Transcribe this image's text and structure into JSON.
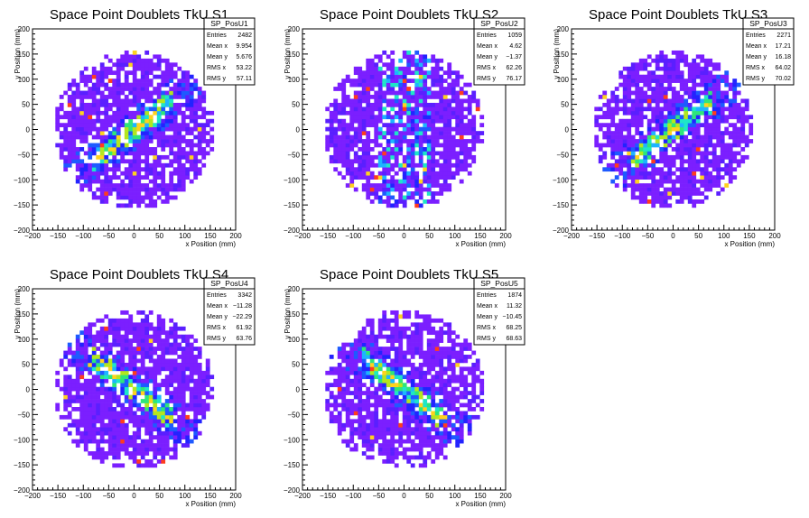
{
  "chart_data": [
    {
      "type": "heatmap",
      "title": "Space Point Doublets TkU S1",
      "xlabel": "x Position (mm)",
      "ylabel": "y Position (mm)",
      "xlim": [
        -200,
        200
      ],
      "ylim": [
        -200,
        200
      ],
      "xticks": [
        "−200",
        "−150",
        "−100",
        "−50",
        "0",
        "50",
        "100",
        "150",
        "200"
      ],
      "yticks": [
        "−200",
        "−150",
        "−100",
        "−50",
        "0",
        "50",
        "100",
        "150",
        "200"
      ],
      "stats": {
        "name": "SP_PosU1",
        "rows": [
          [
            "Entries",
            "2482"
          ],
          [
            "Mean x",
            "9.954"
          ],
          [
            "Mean y",
            "5.676"
          ],
          [
            "RMS x",
            "53.22"
          ],
          [
            "RMS y",
            "57.11"
          ]
        ]
      },
      "band": {
        "dir": 1
      }
    },
    {
      "type": "heatmap",
      "title": "Space Point Doublets TkU S2",
      "xlabel": "x Position (mm)",
      "ylabel": "y Position (mm)",
      "xlim": [
        -200,
        200
      ],
      "ylim": [
        -200,
        200
      ],
      "xticks": [
        "−200",
        "−150",
        "−100",
        "−50",
        "0",
        "50",
        "100",
        "150",
        "200"
      ],
      "yticks": [
        "−200",
        "−150",
        "−100",
        "−50",
        "0",
        "50",
        "100",
        "150",
        "200"
      ],
      "stats": {
        "name": "SP_PosU2",
        "rows": [
          [
            "Entries",
            "1059"
          ],
          [
            "Mean x",
            "4.62"
          ],
          [
            "Mean y",
            "−1.37"
          ],
          [
            "RMS x",
            "62.26"
          ],
          [
            "RMS y",
            "76.17"
          ]
        ]
      },
      "band": {
        "dir": 0
      }
    },
    {
      "type": "heatmap",
      "title": "Space Point Doublets TkU S3",
      "xlabel": "x Position (mm)",
      "ylabel": "y Position (mm)",
      "xlim": [
        -200,
        200
      ],
      "ylim": [
        -200,
        200
      ],
      "xticks": [
        "−200",
        "−150",
        "−100",
        "−50",
        "0",
        "50",
        "100",
        "150",
        "200"
      ],
      "yticks": [
        "−200",
        "−150",
        "−100",
        "−50",
        "0",
        "50",
        "100",
        "150",
        "200"
      ],
      "stats": {
        "name": "SP_PosU3",
        "rows": [
          [
            "Entries",
            "2271"
          ],
          [
            "Mean x",
            "17.21"
          ],
          [
            "Mean y",
            "16.18"
          ],
          [
            "RMS x",
            "64.02"
          ],
          [
            "RMS y",
            "70.02"
          ]
        ]
      },
      "band": {
        "dir": 1
      }
    },
    {
      "type": "heatmap",
      "title": "Space Point Doublets TkU S4",
      "xlabel": "x Position (mm)",
      "ylabel": "y Position (mm)",
      "xlim": [
        -200,
        200
      ],
      "ylim": [
        -200,
        200
      ],
      "xticks": [
        "−200",
        "−150",
        "−100",
        "−50",
        "0",
        "50",
        "100",
        "150",
        "200"
      ],
      "yticks": [
        "−200",
        "−150",
        "−100",
        "−50",
        "0",
        "50",
        "100",
        "150",
        "200"
      ],
      "stats": {
        "name": "SP_PosU4",
        "rows": [
          [
            "Entries",
            "3342"
          ],
          [
            "Mean x",
            "−11.28"
          ],
          [
            "Mean y",
            "−22.29"
          ],
          [
            "RMS x",
            "61.92"
          ],
          [
            "RMS y",
            "63.76"
          ]
        ]
      },
      "band": {
        "dir": -1
      }
    },
    {
      "type": "heatmap",
      "title": "Space Point Doublets TkU S5",
      "xlabel": "x Position (mm)",
      "ylabel": "y Position (mm)",
      "xlim": [
        -200,
        200
      ],
      "ylim": [
        -200,
        200
      ],
      "xticks": [
        "−200",
        "−150",
        "−100",
        "−50",
        "0",
        "50",
        "100",
        "150",
        "200"
      ],
      "yticks": [
        "−200",
        "−150",
        "−100",
        "−50",
        "0",
        "50",
        "100",
        "150",
        "200"
      ],
      "stats": {
        "name": "SP_PosU5",
        "rows": [
          [
            "Entries",
            "1874"
          ],
          [
            "Mean x",
            "11.32"
          ],
          [
            "Mean y",
            "−10.45"
          ],
          [
            "RMS x",
            "68.25"
          ],
          [
            "RMS y",
            "68.63"
          ]
        ]
      },
      "band": {
        "dir": -1
      }
    }
  ],
  "colors": {
    "palette": [
      "#7b1fff",
      "#5a1fff",
      "#2323ff",
      "#1e5aff",
      "#1eb4ff",
      "#1ee6c8",
      "#2ee67a",
      "#b4e61e",
      "#ffd21e",
      "#ff3c1e"
    ]
  }
}
